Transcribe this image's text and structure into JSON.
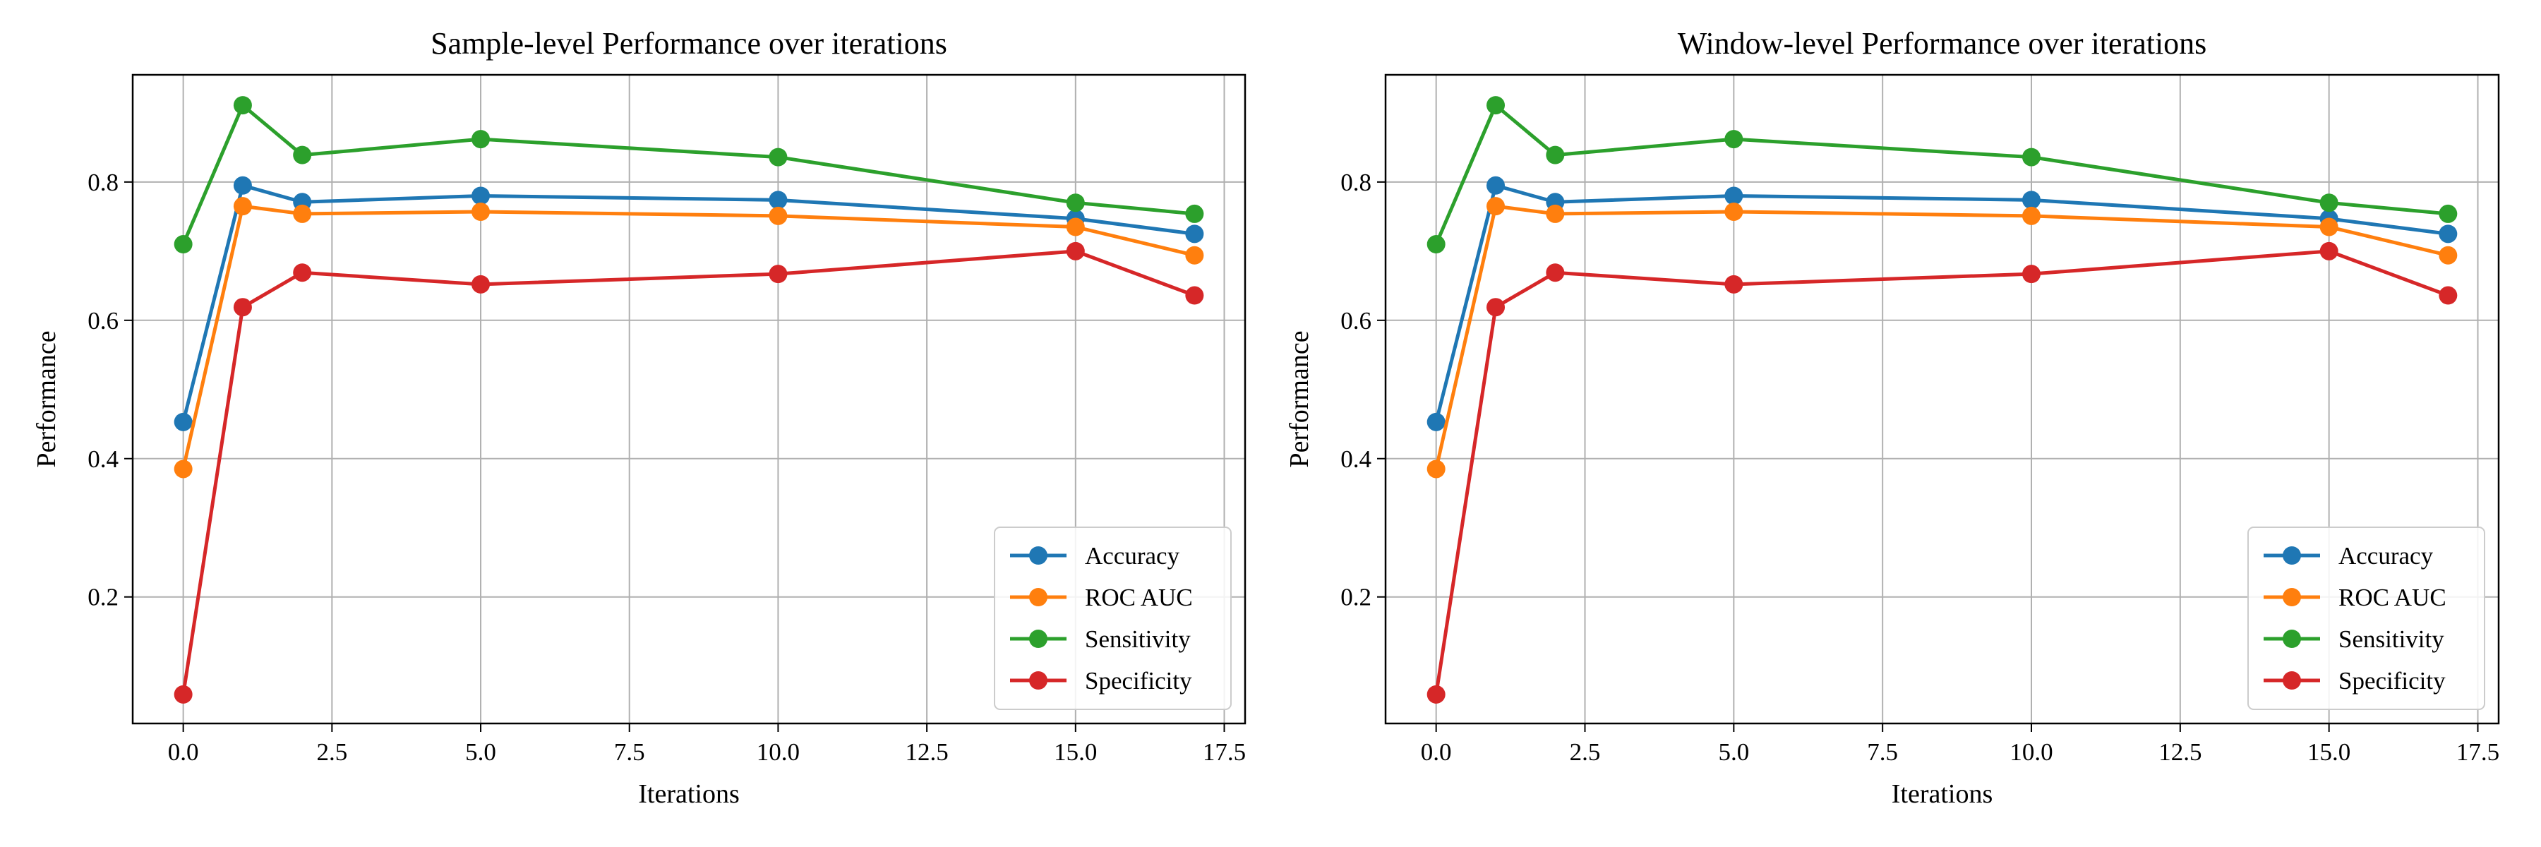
{
  "chart_data": [
    {
      "type": "line",
      "title": "Sample-level Performance over iterations",
      "xlabel": "Iterations",
      "ylabel": "Performance",
      "xlim": [
        -0.85,
        17.85
      ],
      "ylim": [
        0.017,
        0.955
      ],
      "xticks": [
        0.0,
        2.5,
        5.0,
        7.5,
        10.0,
        12.5,
        15.0,
        17.5
      ],
      "xtick_labels": [
        "0.0",
        "2.5",
        "5.0",
        "7.5",
        "10.0",
        "12.5",
        "15.0",
        "17.5"
      ],
      "yticks": [
        0.2,
        0.4,
        0.6,
        0.8
      ],
      "ytick_labels": [
        "0.2",
        "0.4",
        "0.6",
        "0.8"
      ],
      "grid": true,
      "legend_position": "lower-right",
      "x": [
        0,
        1,
        2,
        5,
        10,
        15,
        17
      ],
      "series": [
        {
          "name": "Accuracy",
          "color": "#1f77b4",
          "values": [
            0.453,
            0.795,
            0.771,
            0.78,
            0.774,
            0.747,
            0.725
          ]
        },
        {
          "name": "ROC AUC",
          "color": "#ff7f0e",
          "values": [
            0.385,
            0.765,
            0.754,
            0.757,
            0.751,
            0.735,
            0.694
          ]
        },
        {
          "name": "Sensitivity",
          "color": "#2ca02c",
          "values": [
            0.71,
            0.911,
            0.839,
            0.862,
            0.836,
            0.77,
            0.754
          ]
        },
        {
          "name": "Specificity",
          "color": "#d62728",
          "values": [
            0.059,
            0.619,
            0.669,
            0.652,
            0.667,
            0.7,
            0.636
          ]
        }
      ]
    },
    {
      "type": "line",
      "title": "Window-level Performance over iterations",
      "xlabel": "Iterations",
      "ylabel": "Performance",
      "xlim": [
        -0.85,
        17.85
      ],
      "ylim": [
        0.017,
        0.955
      ],
      "xticks": [
        0.0,
        2.5,
        5.0,
        7.5,
        10.0,
        12.5,
        15.0,
        17.5
      ],
      "xtick_labels": [
        "0.0",
        "2.5",
        "5.0",
        "7.5",
        "10.0",
        "12.5",
        "15.0",
        "17.5"
      ],
      "yticks": [
        0.2,
        0.4,
        0.6,
        0.8
      ],
      "ytick_labels": [
        "0.2",
        "0.4",
        "0.6",
        "0.8"
      ],
      "grid": true,
      "legend_position": "lower-right",
      "x": [
        0,
        1,
        2,
        5,
        10,
        15,
        17
      ],
      "series": [
        {
          "name": "Accuracy",
          "color": "#1f77b4",
          "values": [
            0.453,
            0.795,
            0.771,
            0.78,
            0.774,
            0.747,
            0.725
          ]
        },
        {
          "name": "ROC AUC",
          "color": "#ff7f0e",
          "values": [
            0.385,
            0.765,
            0.754,
            0.757,
            0.751,
            0.735,
            0.694
          ]
        },
        {
          "name": "Sensitivity",
          "color": "#2ca02c",
          "values": [
            0.71,
            0.911,
            0.839,
            0.862,
            0.836,
            0.77,
            0.754
          ]
        },
        {
          "name": "Specificity",
          "color": "#d62728",
          "values": [
            0.059,
            0.619,
            0.669,
            0.652,
            0.667,
            0.7,
            0.636
          ]
        }
      ]
    }
  ]
}
